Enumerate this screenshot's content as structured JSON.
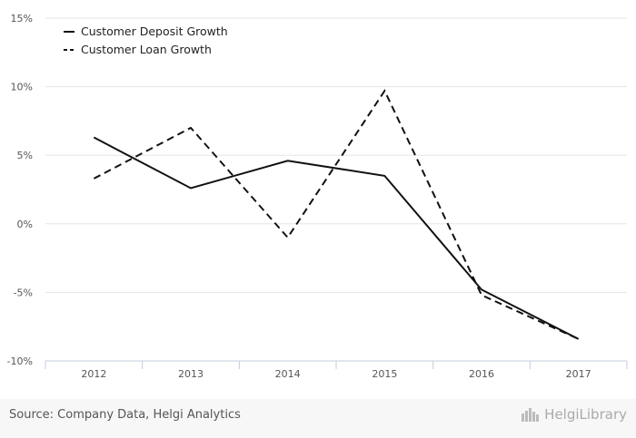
{
  "chart_data": {
    "type": "line",
    "categories": [
      "2012",
      "2013",
      "2014",
      "2015",
      "2016",
      "2017"
    ],
    "series": [
      {
        "name": "Customer Deposit Growth",
        "style": "solid",
        "values": [
          6.3,
          2.6,
          4.6,
          3.5,
          -4.8,
          -8.4
        ]
      },
      {
        "name": "Customer Loan Growth",
        "style": "dashed",
        "values": [
          3.3,
          7.0,
          -1.0,
          9.7,
          -5.2,
          -8.4
        ]
      }
    ],
    "ylim": [
      -10,
      15
    ],
    "yticks": [
      -10,
      -5,
      0,
      5,
      10,
      15
    ],
    "ytick_labels": [
      "-10%",
      "-5%",
      "0%",
      "5%",
      "10%",
      "15%"
    ],
    "title": "",
    "xlabel": "",
    "ylabel": "",
    "legend_position": "top-left",
    "line_color": "#111111",
    "grid_color": "#e6e6e6",
    "axis_color": "#c6ccdd"
  },
  "footer": {
    "source": "Source: Company Data, Helgi Analytics",
    "brand": "HelgiLibrary"
  }
}
